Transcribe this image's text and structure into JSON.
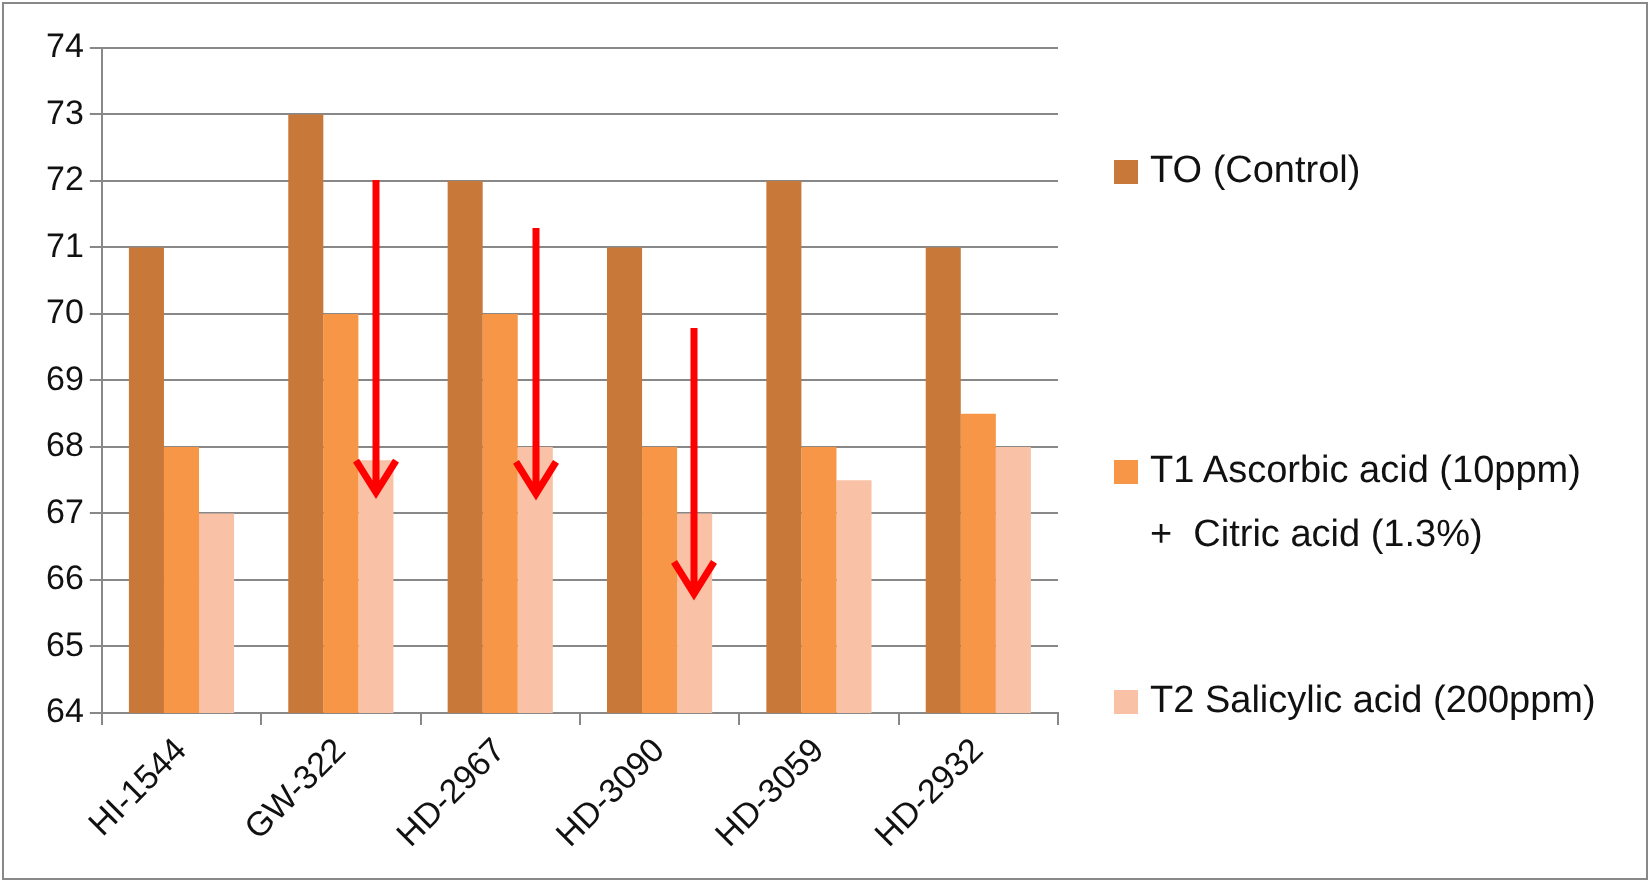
{
  "chart_data": {
    "type": "bar",
    "categories": [
      "HI-1544",
      "GW-322",
      "HD-2967",
      "HD-3090",
      "HD-3059",
      "HD-2932"
    ],
    "series": [
      {
        "name": "TO (Control)",
        "color": "#c8793a",
        "values": [
          71,
          73,
          72,
          71,
          72,
          71
        ]
      },
      {
        "name": "T1 Ascorbic acid (10ppm)  +  Citric acid (1.3%)",
        "color": "#f79646",
        "values": [
          68,
          70,
          70,
          68,
          68,
          68.5
        ]
      },
      {
        "name": "T2 Salicylic acid (200ppm)",
        "color": "#f9c1a5",
        "values": [
          67,
          67.8,
          68,
          67,
          67.5,
          68
        ]
      }
    ],
    "ylim": [
      64,
      74
    ],
    "yticks": [
      64,
      65,
      66,
      67,
      68,
      69,
      70,
      71,
      72,
      73,
      74
    ],
    "grid": "y",
    "legend": "right"
  }
}
